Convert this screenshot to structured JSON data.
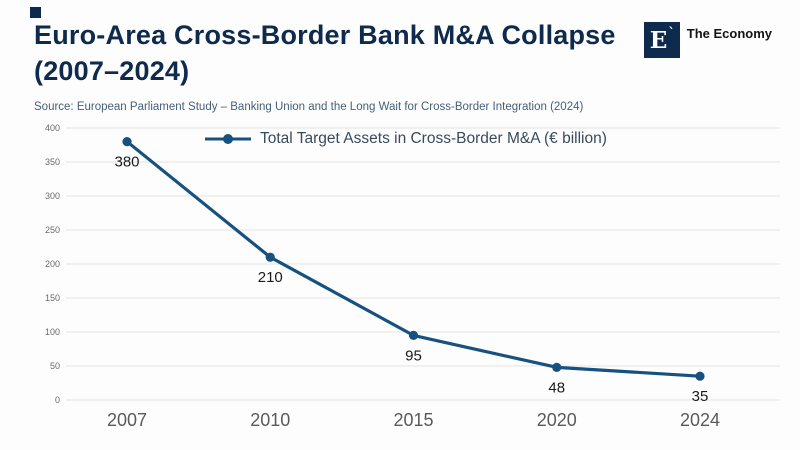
{
  "header": {
    "title_line1": "Euro-Area Cross-Border Bank M&A Collapse",
    "title_line2": "(2007–2024)",
    "source": "Source: European Parliament Study – Banking Union and the Long Wait for Cross-Border Integration (2024)"
  },
  "logo": {
    "monogram": "E",
    "mark": "`",
    "name": "The Economy"
  },
  "colors": {
    "accent": "#17517f",
    "title": "#0e2a4d",
    "source": "#44607a",
    "grid": "#e4e4e4",
    "axis_text": "#6a6a6a",
    "x_axis_text": "#5a5a5a",
    "value_label": "#1b1b1b",
    "legend_text": "#3a4a5c",
    "logo_bg": "#0e2a4d",
    "page_bg": "#fdfdfd"
  },
  "chart_data": {
    "type": "line",
    "categories": [
      "2007",
      "2010",
      "2015",
      "2020",
      "2024"
    ],
    "series": [
      {
        "name": "Total Target Assets in Cross-Border M&A (€ billion)",
        "values": [
          380,
          210,
          95,
          48,
          35
        ]
      }
    ],
    "title": "Euro-Area Cross-Border Bank M&A Collapse (2007–2024)",
    "xlabel": "",
    "ylabel": "",
    "ylim": [
      0,
      400
    ],
    "ytick_step": 50,
    "grid": true,
    "legend_position": "top-center",
    "value_labels": [
      380,
      210,
      95,
      48,
      35
    ]
  }
}
